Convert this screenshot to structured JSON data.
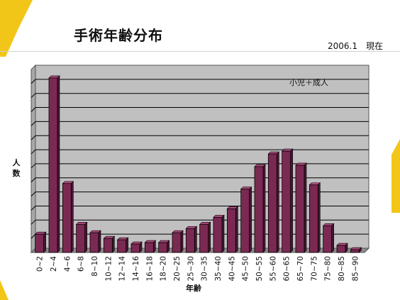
{
  "slide": {
    "title": "手術年齢分布",
    "date_label": "2006.1　現在"
  },
  "colors": {
    "accent_yellow": "#f2c619",
    "bar_fill": "#7a2a52",
    "bar_top": "#b04a7e",
    "plot_bg": "#c0c0c0",
    "plot_wall": "#a8a8a8"
  },
  "chart_data": {
    "type": "bar",
    "categories": [
      "0~2",
      "2~4",
      "4~6",
      "6~8",
      "8~10",
      "10~12",
      "12~14",
      "14~16",
      "16~18",
      "18~20",
      "20~25",
      "25~30",
      "30~35",
      "35~40",
      "40~45",
      "45~50",
      "50~55",
      "55~60",
      "60~65",
      "65~70",
      "70~75",
      "75~80",
      "80~85",
      "85~90"
    ],
    "values": [
      13,
      124,
      49,
      20,
      14,
      10,
      9,
      6,
      7,
      7,
      14,
      17,
      20,
      25,
      31,
      45,
      61,
      70,
      72,
      62,
      48,
      19,
      5,
      2
    ],
    "ylim": [
      0,
      130
    ],
    "grid": true,
    "legend_text": "小児＋成人",
    "ylabel": "人数",
    "xlabel": "年齢"
  }
}
